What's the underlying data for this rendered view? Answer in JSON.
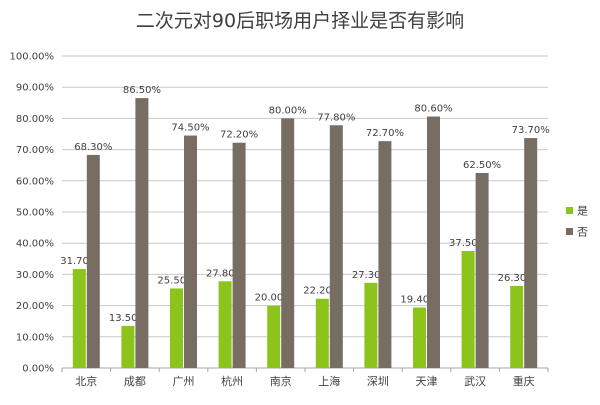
{
  "chart_data": {
    "type": "bar",
    "title": "二次元对90后职场用户择业是否有影响",
    "categories": [
      "北京",
      "成都",
      "广州",
      "杭州",
      "南京",
      "上海",
      "深圳",
      "天津",
      "武汉",
      "重庆"
    ],
    "series": [
      {
        "name": "是",
        "values": [
          31.7,
          13.5,
          25.5,
          27.8,
          20.0,
          22.2,
          27.3,
          19.4,
          37.5,
          26.3
        ],
        "color": "#8cc41c"
      },
      {
        "name": "否",
        "values": [
          68.3,
          86.5,
          74.5,
          72.2,
          80.0,
          77.8,
          72.7,
          80.6,
          62.5,
          73.7
        ],
        "color": "#776d62"
      }
    ],
    "value_labels": {
      "是": [
        "31.70%",
        "13.50%",
        "25.50%",
        "27.80%",
        "20.00%",
        "22.20%",
        "27.30%",
        "19.40%",
        "37.50%",
        "26.30%"
      ],
      "否": [
        "68.30%",
        "86.50%",
        "74.50%",
        "72.20%",
        "80.00%",
        "77.80%",
        "72.70%",
        "80.60%",
        "62.50%",
        "73.70%"
      ]
    },
    "y_ticks": [
      "0.00%",
      "10.00%",
      "20.00%",
      "30.00%",
      "40.00%",
      "50.00%",
      "60.00%",
      "70.00%",
      "80.00%",
      "90.00%",
      "100.00%"
    ],
    "ylim": [
      0,
      100
    ],
    "grid": true,
    "legend_position": "right"
  }
}
